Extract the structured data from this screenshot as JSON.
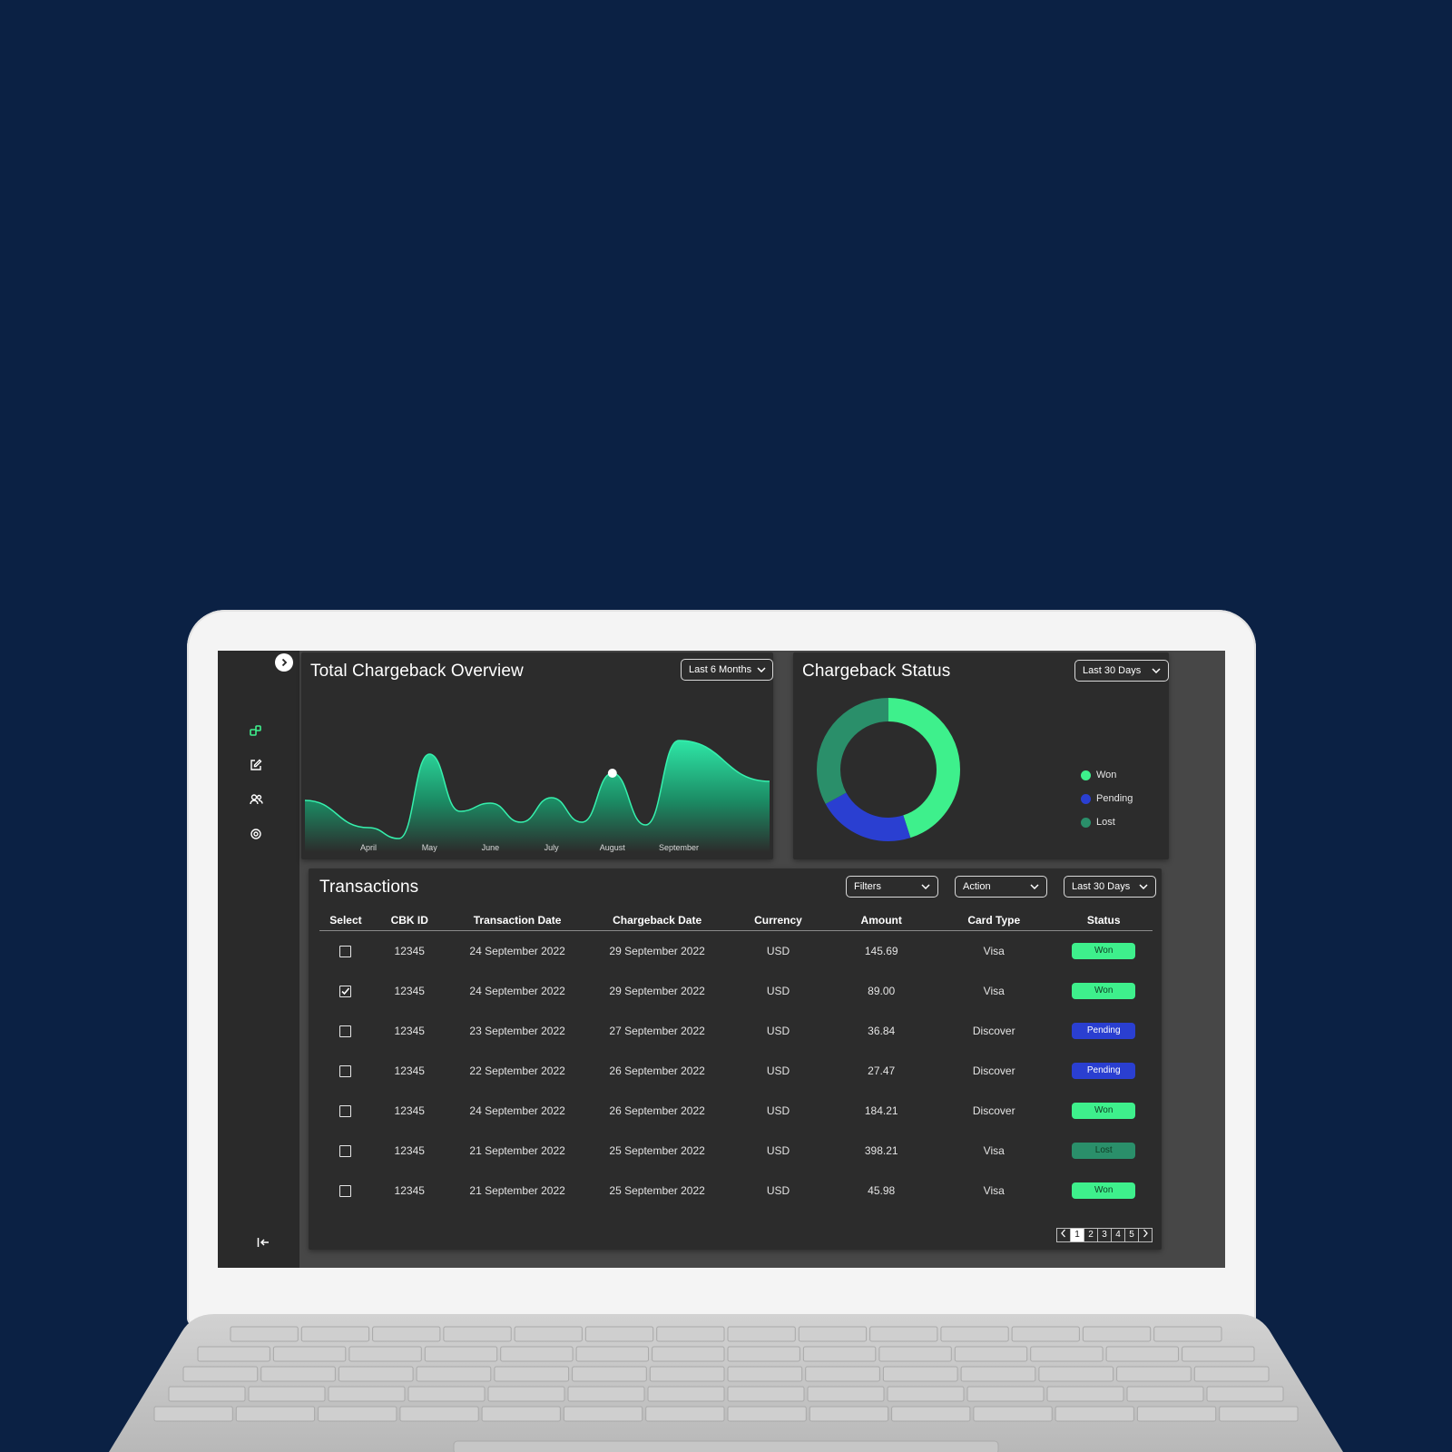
{
  "overview": {
    "title": "Total Chargeback Overview",
    "range": "Last 6 Months",
    "months": [
      "April",
      "May",
      "June",
      "July",
      "August",
      "September"
    ]
  },
  "status_card": {
    "title": "Chargeback Status",
    "range": "Last 30 Days",
    "legend": [
      {
        "label": "Won",
        "color": "#3ef08c"
      },
      {
        "label": "Pending",
        "color": "#2a3fd1"
      },
      {
        "label": "Lost",
        "color": "#2a8f6a"
      }
    ]
  },
  "transactions": {
    "title": "Transactions",
    "filters_label": "Filters",
    "action_label": "Action",
    "range": "Last 30 Days",
    "columns": [
      "Select",
      "CBK ID",
      "Transaction Date",
      "Chargeback Date",
      "Currency",
      "Amount",
      "Card Type",
      "Status"
    ],
    "rows": [
      {
        "checked": false,
        "id": "12345",
        "tdate": "24 September 2022",
        "cdate": "29 September 2022",
        "currency": "USD",
        "amount": "145.69",
        "card": "Visa",
        "status": "Won"
      },
      {
        "checked": true,
        "id": "12345",
        "tdate": "24 September 2022",
        "cdate": "29 September 2022",
        "currency": "USD",
        "amount": "89.00",
        "card": "Visa",
        "status": "Won"
      },
      {
        "checked": false,
        "id": "12345",
        "tdate": "23 September 2022",
        "cdate": "27 September 2022",
        "currency": "USD",
        "amount": "36.84",
        "card": "Discover",
        "status": "Pending"
      },
      {
        "checked": false,
        "id": "12345",
        "tdate": "22 September 2022",
        "cdate": "26 September 2022",
        "currency": "USD",
        "amount": "27.47",
        "card": "Discover",
        "status": "Pending"
      },
      {
        "checked": false,
        "id": "12345",
        "tdate": "24 September 2022",
        "cdate": "26 September 2022",
        "currency": "USD",
        "amount": "184.21",
        "card": "Discover",
        "status": "Won"
      },
      {
        "checked": false,
        "id": "12345",
        "tdate": "21 September 2022",
        "cdate": "25 September 2022",
        "currency": "USD",
        "amount": "398.21",
        "card": "Visa",
        "status": "Lost"
      },
      {
        "checked": false,
        "id": "12345",
        "tdate": "21 September 2022",
        "cdate": "25 September 2022",
        "currency": "USD",
        "amount": "45.98",
        "card": "Visa",
        "status": "Won"
      }
    ],
    "pages": [
      "1",
      "2",
      "3",
      "4",
      "5"
    ],
    "current_page": "1"
  },
  "status_colors": {
    "Won": "#3ef08c",
    "Pending": "#2a3fd1",
    "Lost": "#2a8f6a"
  },
  "status_text_colors": {
    "Won": "#0f3d24",
    "Pending": "#ffffff",
    "Lost": "#0f3d24"
  },
  "sidebar": {
    "icons": [
      "dashboard-icon",
      "edit-icon",
      "users-icon",
      "settings-icon"
    ],
    "active_color": "#3ef08c"
  },
  "chart_data": [
    {
      "type": "area",
      "title": "Total Chargeback Overview",
      "x": [
        "April",
        "May",
        "June",
        "July",
        "August",
        "September"
      ],
      "xlabel": "",
      "ylabel": "",
      "note_values": "relative shape; no y-axis printed",
      "values": [
        18,
        72,
        36,
        40,
        58,
        82
      ],
      "highlight_category": "August"
    },
    {
      "type": "pie",
      "title": "Chargeback Status",
      "categories": [
        "Won",
        "Pending",
        "Lost"
      ],
      "values": [
        45,
        22,
        33
      ],
      "colors": [
        "#3ef08c",
        "#2a3fd1",
        "#2a8f6a"
      ],
      "donut": true
    }
  ]
}
